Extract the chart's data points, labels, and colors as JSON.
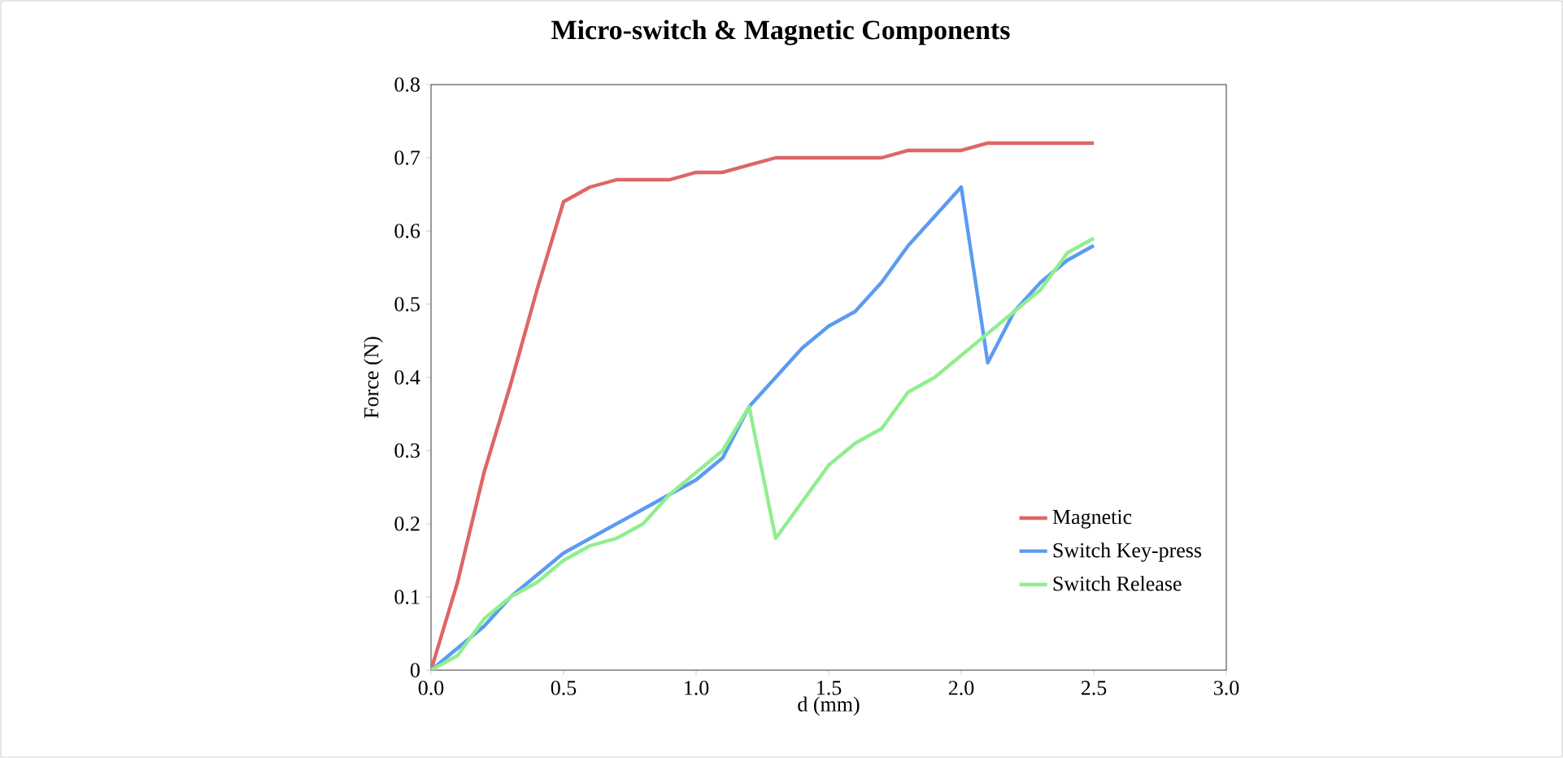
{
  "chart_data": {
    "type": "line",
    "title": "Micro-switch & Magnetic Components",
    "xlabel": "d (mm)",
    "ylabel": "Force (N)",
    "x": [
      0,
      0.1,
      0.2,
      0.3,
      0.4,
      0.5,
      0.6,
      0.7,
      0.8,
      0.9,
      1.0,
      1.1,
      1.2,
      1.3,
      1.4,
      1.5,
      1.6,
      1.7,
      1.8,
      1.9,
      2.0,
      2.1,
      2.2,
      2.3,
      2.4,
      2.5
    ],
    "series": [
      {
        "name": "Magnetic",
        "color": "#dd6666",
        "values": [
          0,
          0.12,
          0.27,
          0.39,
          0.52,
          0.64,
          0.66,
          0.67,
          0.67,
          0.67,
          0.68,
          0.68,
          0.69,
          0.7,
          0.7,
          0.7,
          0.7,
          0.7,
          0.71,
          0.71,
          0.71,
          0.72,
          0.72,
          0.72,
          0.72,
          0.72
        ]
      },
      {
        "name": "Switch Key-press",
        "color": "#5b9bf0",
        "values": [
          0,
          0.03,
          0.06,
          0.1,
          0.13,
          0.16,
          0.18,
          0.2,
          0.22,
          0.24,
          0.26,
          0.29,
          0.36,
          0.4,
          0.44,
          0.47,
          0.49,
          0.53,
          0.58,
          0.62,
          0.66,
          0.42,
          0.49,
          0.53,
          0.56,
          0.58
        ]
      },
      {
        "name": "Switch Release",
        "color": "#90ee90",
        "values": [
          0,
          0.02,
          0.07,
          0.1,
          0.12,
          0.15,
          0.17,
          0.18,
          0.2,
          0.24,
          0.27,
          0.3,
          0.36,
          0.18,
          0.23,
          0.28,
          0.31,
          0.33,
          0.38,
          0.4,
          0.43,
          0.46,
          0.49,
          0.52,
          0.57,
          0.59
        ]
      }
    ],
    "xlim": [
      0,
      3
    ],
    "xticks": [
      {
        "value": 0,
        "label": "0.0"
      },
      {
        "value": 0.5,
        "label": "0.5"
      },
      {
        "value": 1,
        "label": "1.0"
      },
      {
        "value": 1.5,
        "label": "1.5"
      },
      {
        "value": 2,
        "label": "2.0"
      },
      {
        "value": 2.5,
        "label": "2.5"
      },
      {
        "value": 3,
        "label": "3.0"
      }
    ],
    "ylim": [
      0,
      0.8
    ],
    "yticks": [
      0,
      0.1,
      0.2,
      0.3,
      0.4,
      0.5,
      0.6,
      0.7,
      0.8
    ],
    "grid": false,
    "legend": "right",
    "marker": "none",
    "line_style": "solid"
  }
}
